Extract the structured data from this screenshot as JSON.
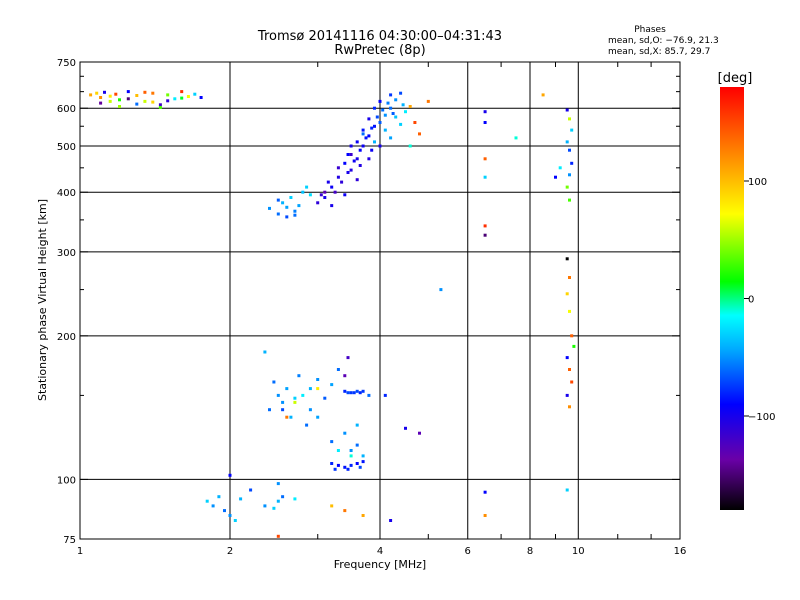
{
  "chart_data": {
    "type": "scatter",
    "title": "Tromsø 20141116 04:30:00–04:31:43",
    "subtitle": "RwPretec (8p)",
    "xlabel": "Frequency [MHz]",
    "ylabel": "Stationary phase Virtual Height [km]",
    "x_scale": "log",
    "y_scale": "log",
    "xlim": [
      1,
      16
    ],
    "ylim": [
      75,
      750
    ],
    "x_ticks": [
      1,
      2,
      4,
      6,
      8,
      10,
      16
    ],
    "x_tick_labels": [
      "1",
      "2",
      "4",
      "6",
      "8",
      "10",
      "16"
    ],
    "y_ticks": [
      75,
      100,
      200,
      300,
      400,
      500,
      600,
      750
    ],
    "y_tick_labels": [
      "75",
      "100",
      "200",
      "300",
      "400",
      "500",
      "600",
      "750"
    ],
    "grid": true,
    "legend": {
      "title": "Phases",
      "lines": [
        "mean, sd,O: −76.9, 21.3",
        "mean, sd,X:  85.7, 29.7"
      ],
      "position": "top-right"
    },
    "colorbar": {
      "title": "[deg]",
      "range": [
        -180,
        180
      ],
      "ticks": [
        100,
        0,
        -100
      ],
      "tick_labels": [
        "100",
        "0",
        "−100"
      ]
    },
    "series": [
      {
        "points": [
          [
            1.05,
            640,
            110
          ],
          [
            1.08,
            645,
            90
          ],
          [
            1.1,
            632,
            120
          ],
          [
            1.12,
            648,
            -100
          ],
          [
            1.15,
            636,
            80
          ],
          [
            1.18,
            642,
            150
          ],
          [
            1.2,
            625,
            20
          ],
          [
            1.25,
            650,
            -90
          ],
          [
            1.3,
            638,
            100
          ],
          [
            1.35,
            620,
            60
          ],
          [
            1.4,
            645,
            130
          ],
          [
            1.45,
            610,
            -120
          ],
          [
            1.5,
            640,
            40
          ],
          [
            1.55,
            628,
            -20
          ],
          [
            1.6,
            650,
            160
          ],
          [
            1.65,
            635,
            70
          ],
          [
            1.1,
            615,
            -140
          ],
          [
            1.2,
            605,
            50
          ],
          [
            1.3,
            612,
            -60
          ],
          [
            1.4,
            618,
            90
          ],
          [
            1.5,
            622,
            -110
          ],
          [
            1.6,
            630,
            10
          ],
          [
            1.7,
            642,
            -30
          ],
          [
            1.75,
            632,
            -90
          ],
          [
            1.45,
            602,
            30
          ],
          [
            1.35,
            648,
            140
          ],
          [
            1.25,
            628,
            -150
          ],
          [
            1.15,
            620,
            60
          ],
          [
            2.4,
            370,
            -50
          ],
          [
            2.5,
            360,
            -60
          ],
          [
            2.55,
            380,
            -40
          ],
          [
            2.6,
            355,
            -70
          ],
          [
            2.65,
            390,
            -30
          ],
          [
            2.7,
            365,
            -55
          ],
          [
            2.75,
            375,
            -45
          ],
          [
            2.8,
            400,
            -35
          ],
          [
            2.9,
            395,
            -25
          ],
          [
            2.5,
            385,
            -65
          ],
          [
            2.6,
            372,
            -45
          ],
          [
            2.7,
            358,
            -60
          ],
          [
            2.85,
            410,
            -30
          ],
          [
            3.0,
            380,
            -110
          ],
          [
            3.1,
            390,
            -100
          ],
          [
            3.2,
            410,
            -95
          ],
          [
            3.3,
            430,
            -105
          ],
          [
            3.4,
            460,
            -90
          ],
          [
            3.5,
            480,
            -115
          ],
          [
            3.6,
            510,
            -95
          ],
          [
            3.7,
            540,
            -85
          ],
          [
            3.8,
            570,
            -100
          ],
          [
            3.9,
            600,
            -80
          ],
          [
            4.0,
            620,
            -90
          ],
          [
            4.2,
            640,
            -75
          ],
          [
            4.4,
            645,
            -70
          ],
          [
            3.25,
            400,
            -120
          ],
          [
            3.35,
            420,
            -110
          ],
          [
            3.45,
            440,
            -100
          ],
          [
            3.55,
            465,
            -95
          ],
          [
            3.65,
            490,
            -90
          ],
          [
            3.75,
            520,
            -85
          ],
          [
            3.85,
            545,
            -80
          ],
          [
            3.95,
            575,
            -70
          ],
          [
            4.05,
            595,
            -60
          ],
          [
            4.15,
            615,
            -55
          ],
          [
            4.3,
            625,
            -50
          ],
          [
            3.5,
            445,
            -105
          ],
          [
            3.6,
            470,
            -100
          ],
          [
            3.7,
            500,
            -95
          ],
          [
            3.8,
            525,
            -90
          ],
          [
            3.9,
            550,
            -85
          ],
          [
            4.0,
            560,
            -65
          ],
          [
            4.1,
            540,
            -40
          ],
          [
            4.3,
            575,
            -35
          ],
          [
            4.5,
            590,
            -20
          ],
          [
            4.2,
            520,
            -45
          ],
          [
            4.4,
            555,
            -30
          ],
          [
            4.6,
            605,
            110
          ],
          [
            4.7,
            560,
            150
          ],
          [
            4.8,
            530,
            140
          ],
          [
            5.0,
            620,
            130
          ],
          [
            3.1,
            400,
            -130
          ],
          [
            3.3,
            450,
            -115
          ],
          [
            3.5,
            500,
            -100
          ],
          [
            3.7,
            530,
            -60
          ],
          [
            3.9,
            510,
            -40
          ],
          [
            4.1,
            580,
            -50
          ],
          [
            3.2,
            375,
            -100
          ],
          [
            3.4,
            395,
            -95
          ],
          [
            3.6,
            425,
            -110
          ],
          [
            3.8,
            470,
            -105
          ],
          [
            4.0,
            500,
            -100
          ],
          [
            4.2,
            600,
            -60
          ],
          [
            4.6,
            500,
            -10
          ],
          [
            3.05,
            395,
            -115
          ],
          [
            3.15,
            420,
            -100
          ],
          [
            3.45,
            480,
            -90
          ],
          [
            3.65,
            455,
            -105
          ],
          [
            3.85,
            490,
            -95
          ],
          [
            4.25,
            585,
            -65
          ],
          [
            4.45,
            610,
            -40
          ],
          [
            2.35,
            185,
            -40
          ],
          [
            2.45,
            160,
            -60
          ],
          [
            2.5,
            150,
            -50
          ],
          [
            2.55,
            140,
            -70
          ],
          [
            2.6,
            155,
            -45
          ],
          [
            2.7,
            148,
            -30
          ],
          [
            2.75,
            165,
            -55
          ],
          [
            2.8,
            150,
            -20
          ],
          [
            2.9,
            155,
            -40
          ],
          [
            3.0,
            162,
            -50
          ],
          [
            3.1,
            148,
            -65
          ],
          [
            3.2,
            158,
            -45
          ],
          [
            3.3,
            170,
            -60
          ],
          [
            3.4,
            165,
            -130
          ],
          [
            3.45,
            180,
            -120
          ],
          [
            3.5,
            152,
            -75
          ],
          [
            3.55,
            152,
            -75
          ],
          [
            3.6,
            153,
            -70
          ],
          [
            3.65,
            152,
            -80
          ],
          [
            3.7,
            153,
            -75
          ],
          [
            3.4,
            153,
            -80
          ],
          [
            3.45,
            152,
            -70
          ],
          [
            2.4,
            140,
            -60
          ],
          [
            2.55,
            145,
            -50
          ],
          [
            2.65,
            135,
            -40
          ],
          [
            2.85,
            130,
            -60
          ],
          [
            3.0,
            135,
            -45
          ],
          [
            3.2,
            120,
            -60
          ],
          [
            3.4,
            125,
            -50
          ],
          [
            3.6,
            130,
            -40
          ],
          [
            3.8,
            150,
            -60
          ],
          [
            4.1,
            150,
            -80
          ],
          [
            4.5,
            128,
            -100
          ],
          [
            4.8,
            125,
            -130
          ],
          [
            3.6,
            118,
            -60
          ],
          [
            3.3,
            115,
            -20
          ],
          [
            3.5,
            112,
            -10
          ],
          [
            3.7,
            112,
            -40
          ],
          [
            2.9,
            140,
            -50
          ],
          [
            2.7,
            145,
            60
          ],
          [
            2.6,
            135,
            130
          ],
          [
            3.0,
            155,
            80
          ],
          [
            3.5,
            115,
            -50
          ],
          [
            3.2,
            108,
            -80
          ],
          [
            3.3,
            107,
            -90
          ],
          [
            3.4,
            106,
            -85
          ],
          [
            3.5,
            107,
            -80
          ],
          [
            3.6,
            108,
            -90
          ],
          [
            3.7,
            109,
            -85
          ],
          [
            3.25,
            105,
            -75
          ],
          [
            3.45,
            105,
            -80
          ],
          [
            3.65,
            106,
            -70
          ],
          [
            1.8,
            90,
            -30
          ],
          [
            1.85,
            88,
            -50
          ],
          [
            1.9,
            92,
            -40
          ],
          [
            1.95,
            86,
            -60
          ],
          [
            2.0,
            84,
            -50
          ],
          [
            2.05,
            82,
            -30
          ],
          [
            2.1,
            91,
            -40
          ],
          [
            2.2,
            95,
            -70
          ],
          [
            2.35,
            88,
            -50
          ],
          [
            2.45,
            87,
            -30
          ],
          [
            2.5,
            90,
            -40
          ],
          [
            2.55,
            92,
            -60
          ],
          [
            2.7,
            91,
            -20
          ],
          [
            2.5,
            98,
            -50
          ],
          [
            3.2,
            88,
            100
          ],
          [
            3.4,
            86,
            130
          ],
          [
            3.7,
            84,
            110
          ],
          [
            4.2,
            82,
            -100
          ],
          [
            2.0,
            102,
            -90
          ],
          [
            2.5,
            76,
            150
          ],
          [
            6.5,
            590,
            -100
          ],
          [
            6.5,
            560,
            -90
          ],
          [
            6.5,
            470,
            140
          ],
          [
            6.5,
            430,
            -30
          ],
          [
            6.5,
            340,
            160
          ],
          [
            6.5,
            325,
            -150
          ],
          [
            6.5,
            94,
            -90
          ],
          [
            6.5,
            84,
            120
          ],
          [
            7.5,
            520,
            -10
          ],
          [
            8.5,
            640,
            110
          ],
          [
            9.0,
            430,
            -90
          ],
          [
            9.2,
            450,
            -20
          ],
          [
            9.5,
            595,
            -100
          ],
          [
            9.6,
            570,
            60
          ],
          [
            9.7,
            540,
            -30
          ],
          [
            9.5,
            510,
            -40
          ],
          [
            9.6,
            490,
            -70
          ],
          [
            9.7,
            460,
            -80
          ],
          [
            9.6,
            435,
            -50
          ],
          [
            9.5,
            410,
            40
          ],
          [
            9.6,
            385,
            30
          ],
          [
            9.5,
            290,
            -180
          ],
          [
            9.6,
            265,
            130
          ],
          [
            9.5,
            245,
            90
          ],
          [
            9.6,
            225,
            70
          ],
          [
            9.7,
            200,
            140
          ],
          [
            9.8,
            190,
            20
          ],
          [
            9.5,
            180,
            -90
          ],
          [
            9.6,
            170,
            140
          ],
          [
            9.7,
            160,
            150
          ],
          [
            9.5,
            150,
            -100
          ],
          [
            9.6,
            142,
            120
          ],
          [
            9.5,
            95,
            -30
          ],
          [
            5.3,
            250,
            -50
          ]
        ]
      }
    ]
  }
}
